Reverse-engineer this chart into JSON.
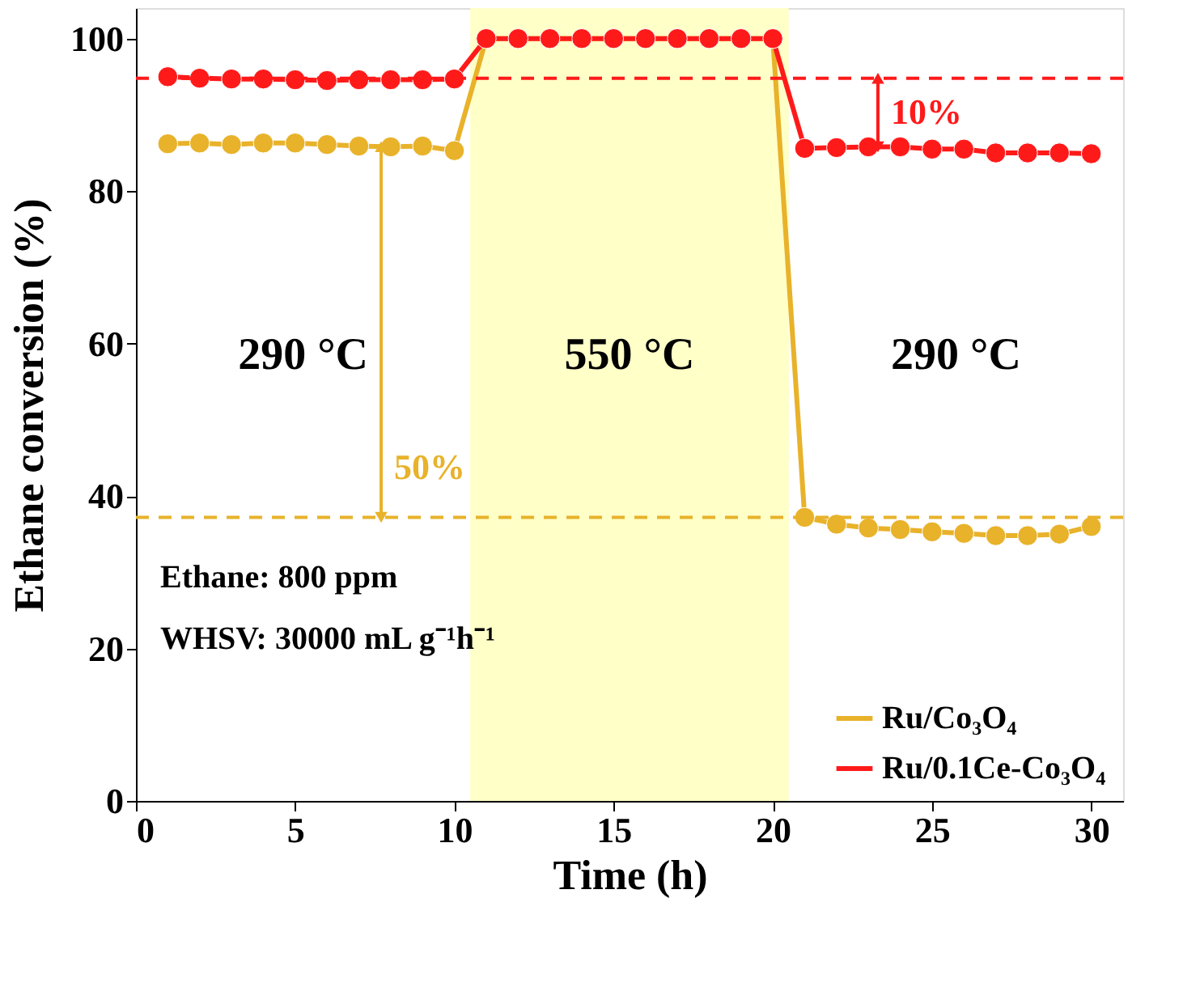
{
  "chart_data": {
    "type": "line",
    "xlabel": "Time (h)",
    "ylabel": "Ethane conversion (%)",
    "x": [
      1,
      2,
      3,
      4,
      5,
      6,
      7,
      8,
      9,
      10,
      11,
      12,
      13,
      14,
      15,
      16,
      17,
      18,
      19,
      20,
      21,
      22,
      23,
      24,
      25,
      26,
      27,
      28,
      29,
      30
    ],
    "series": [
      {
        "name": "Ru/Co₃O₄",
        "color": "#e8b22a",
        "values": [
          86.2,
          86.3,
          86.1,
          86.3,
          86.3,
          86.1,
          85.9,
          85.8,
          85.9,
          85.3,
          100,
          100,
          100,
          100,
          100,
          100,
          100,
          100,
          100,
          100,
          37.2,
          36.3,
          35.8,
          35.6,
          35.3,
          35.1,
          34.8,
          34.8,
          35.0,
          36.0
        ]
      },
      {
        "name": "Ru/0.1Ce-Co₃O₄",
        "color": "#ff1a1a",
        "values": [
          95.0,
          94.8,
          94.7,
          94.7,
          94.6,
          94.5,
          94.6,
          94.6,
          94.6,
          94.7,
          100,
          100,
          100,
          100,
          100,
          100,
          100,
          100,
          100,
          100,
          85.6,
          85.7,
          85.8,
          85.8,
          85.5,
          85.5,
          85.0,
          85.0,
          85.0,
          84.9
        ]
      }
    ],
    "xlim": [
      0,
      31
    ],
    "xticks": [
      0,
      5,
      10,
      15,
      20,
      25,
      30
    ],
    "ylim": [
      0,
      104
    ],
    "yticks": [
      0,
      20,
      40,
      60,
      80,
      100
    ],
    "bands": [
      {
        "axis": "x",
        "from": 10.5,
        "to": 20.5,
        "color": "#ffffc8"
      }
    ],
    "ref_lines": [
      {
        "axis": "y",
        "value": 94.8,
        "color": "#ff1a1a",
        "line_style": "dashed"
      },
      {
        "axis": "y",
        "value": 37.2,
        "color": "#e8b22a",
        "line_style": "dashed"
      }
    ],
    "annotations": [
      {
        "text": "10%",
        "x": 23.3,
        "y": 94.8
      },
      {
        "text": "50%",
        "x": 7.7,
        "y": 37.2
      },
      "290 °C",
      "550 °C",
      "290 °C",
      "Ethane: 800 ppm",
      "WHSV: 30000 mL g⁻¹h⁻¹"
    ],
    "marker": "circle",
    "line_style": "solid",
    "legend": "bottom right",
    "grid": false
  }
}
